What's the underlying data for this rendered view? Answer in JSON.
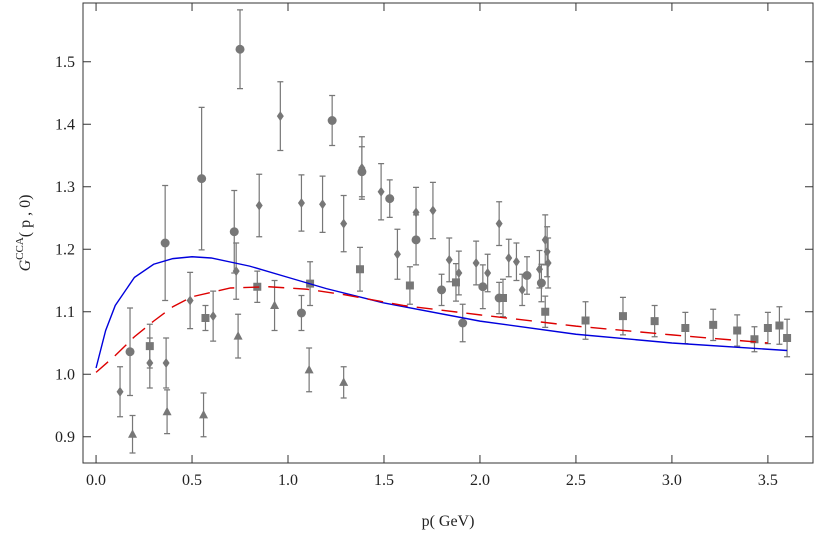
{
  "chart_data": {
    "type": "scatter",
    "xlabel": "p( GeV)",
    "ylabel": {
      "main": "G",
      "sup": "CCA",
      "rest": "( p , 0)"
    },
    "xlim": [
      -0.068,
      3.735
    ],
    "ylim": [
      0.858,
      1.594
    ],
    "xticks": [
      {
        "value": 0,
        "label": "0.0"
      },
      {
        "value": 0.5,
        "label": "0.5"
      },
      {
        "value": 1,
        "label": "1.0"
      },
      {
        "value": 1.5,
        "label": "1.5"
      },
      {
        "value": 2,
        "label": "2.0"
      },
      {
        "value": 2.5,
        "label": "2.5"
      },
      {
        "value": 3,
        "label": "3.0"
      },
      {
        "value": 3.5,
        "label": "3.5"
      }
    ],
    "yticks": [
      0.9,
      {
        "value": 1,
        "label": "1.0"
      },
      1.1,
      1.2,
      1.3,
      1.4,
      1.5
    ],
    "series": [
      {
        "kind": "errorbar",
        "marker": "circle",
        "color": "#777777",
        "x": [
          0.177,
          0.36,
          0.55,
          0.72,
          0.75,
          1.07,
          1.23,
          1.385,
          1.53,
          1.667,
          1.8,
          1.91,
          2.015,
          2.1,
          2.245,
          2.32
        ],
        "values": [
          1.036,
          1.21,
          1.313,
          1.228,
          1.52,
          1.098,
          1.406,
          1.324,
          1.281,
          1.215,
          1.135,
          1.082,
          1.14,
          1.122,
          1.158,
          1.146
        ],
        "errors": [
          0.07,
          0.092,
          0.114,
          0.066,
          0.063,
          0.028,
          0.04,
          0.04,
          0.03,
          0.04,
          0.025,
          0.03,
          0.035,
          0.025,
          0.03,
          0.03
        ]
      },
      {
        "kind": "errorbar",
        "marker": "diamond",
        "color": "#777777",
        "x": [
          0.125,
          0.28,
          0.365,
          0.49,
          0.61,
          0.73,
          0.85,
          0.96,
          1.07,
          1.18,
          1.29,
          1.385,
          1.485,
          1.57,
          1.667,
          1.755,
          1.84,
          1.89,
          1.98,
          2.04,
          2.1,
          2.15,
          2.19,
          2.22,
          2.31,
          2.34,
          2.35,
          2.355
        ],
        "values": [
          0.972,
          1.018,
          1.018,
          1.118,
          1.093,
          1.165,
          1.27,
          1.413,
          1.274,
          1.272,
          1.241,
          1.33,
          1.292,
          1.192,
          1.259,
          1.262,
          1.183,
          1.162,
          1.178,
          1.162,
          1.241,
          1.186,
          1.18,
          1.135,
          1.168,
          1.215,
          1.196,
          1.178
        ],
        "errors": [
          0.04,
          0.04,
          0.04,
          0.045,
          0.04,
          0.045,
          0.05,
          0.055,
          0.045,
          0.045,
          0.045,
          0.05,
          0.045,
          0.04,
          0.04,
          0.045,
          0.035,
          0.035,
          0.035,
          0.03,
          0.035,
          0.03,
          0.03,
          0.025,
          0.03,
          0.04,
          0.04,
          0.04
        ]
      },
      {
        "kind": "errorbar",
        "marker": "square",
        "color": "#777777",
        "x": [
          0.28,
          0.57,
          0.84,
          1.115,
          1.375,
          1.635,
          1.875,
          2.12,
          2.34,
          2.55,
          2.745,
          2.91,
          3.07,
          3.215,
          3.34,
          3.43,
          3.5,
          3.56,
          3.6
        ],
        "values": [
          1.045,
          1.09,
          1.14,
          1.145,
          1.168,
          1.142,
          1.147,
          1.122,
          1.1,
          1.086,
          1.093,
          1.085,
          1.074,
          1.079,
          1.07,
          1.056,
          1.074,
          1.078,
          1.058
        ],
        "errors": [
          0.035,
          0.02,
          0.025,
          0.035,
          0.035,
          0.03,
          0.03,
          0.03,
          0.025,
          0.03,
          0.03,
          0.025,
          0.025,
          0.025,
          0.025,
          0.02,
          0.025,
          0.03,
          0.03
        ]
      },
      {
        "kind": "errorbar",
        "marker": "triangle",
        "color": "#777777",
        "x": [
          0.19,
          0.37,
          0.56,
          0.74,
          0.93,
          1.11,
          1.29
        ],
        "values": [
          0.904,
          0.94,
          0.935,
          1.061,
          1.11,
          1.007,
          0.987
        ],
        "errors": [
          0.03,
          0.035,
          0.035,
          0.035,
          0.04,
          0.035,
          0.025
        ]
      },
      {
        "kind": "line",
        "dash": false,
        "color": "#0000dd",
        "x": [
          0,
          0.05,
          0.1,
          0.2,
          0.3,
          0.4,
          0.5,
          0.6,
          0.8,
          1.0,
          1.2,
          1.5,
          2.0,
          2.5,
          3.0,
          3.6
        ],
        "values": [
          1.01,
          1.07,
          1.11,
          1.155,
          1.176,
          1.185,
          1.188,
          1.186,
          1.173,
          1.155,
          1.137,
          1.114,
          1.085,
          1.064,
          1.05,
          1.038
        ]
      },
      {
        "kind": "line",
        "dash": true,
        "color": "#dd0000",
        "x": [
          0,
          0.1,
          0.2,
          0.3,
          0.4,
          0.5,
          0.7,
          0.9,
          1.1,
          1.3,
          1.6,
          2.0,
          2.5,
          3.0,
          3.5
        ],
        "values": [
          1.003,
          1.03,
          1.06,
          1.085,
          1.108,
          1.124,
          1.138,
          1.14,
          1.136,
          1.127,
          1.11,
          1.095,
          1.077,
          1.063,
          1.05
        ]
      }
    ]
  }
}
